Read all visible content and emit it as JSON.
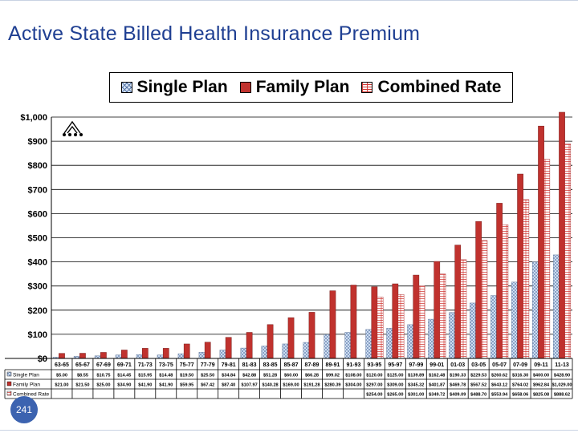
{
  "slide": {
    "title": "Active State Billed Health Insurance Premium",
    "page_number": "241"
  },
  "legend": {
    "items": [
      {
        "label": "Single Plan",
        "series": "single"
      },
      {
        "label": "Family Plan",
        "series": "family"
      },
      {
        "label": "Combined Rate",
        "series": "combined"
      }
    ]
  },
  "colors": {
    "single_fill": "#d8e6f8",
    "single_hatch": "#5a78a8",
    "family_fill": "#c0322e",
    "combined_fill": "#ffffff",
    "combined_hatch": "#d23a36",
    "title": "#1f3f92",
    "badge": "#3c63b0"
  },
  "chart_data": {
    "type": "bar",
    "title": "Active State Billed Health Insurance Premium",
    "xlabel": "",
    "ylabel": "",
    "ylim": [
      0,
      1000
    ],
    "yticks": [
      "$0",
      "$100",
      "$200",
      "$300",
      "$400",
      "$500",
      "$600",
      "$700",
      "$800",
      "$900",
      "$1,000"
    ],
    "grid": true,
    "legend_position": "top",
    "categories": [
      "63-65",
      "65-67",
      "67-69",
      "69-71",
      "71-73",
      "73-75",
      "75-77",
      "77-79",
      "79-81",
      "81-83",
      "83-85",
      "85-87",
      "87-89",
      "89-91",
      "91-93",
      "93-95",
      "95-97",
      "97-99",
      "99-01",
      "01-03",
      "03-05",
      "05-07",
      "07-09",
      "09-11",
      "11-13"
    ],
    "series": [
      {
        "name": "Single Plan",
        "values": [
          5.0,
          8.55,
          10.75,
          14.45,
          15.95,
          14.48,
          19.5,
          25.5,
          34.84,
          42.88,
          51.28,
          60.0,
          66.28,
          99.02,
          108.0,
          120.0,
          125.0,
          139.89,
          162.48,
          190.33,
          229.53,
          260.62,
          316.3,
          400.0,
          428.9
        ],
        "labels": [
          "$5.00",
          "$8.55",
          "$10.75",
          "$14.45",
          "$15.95",
          "$14.48",
          "$19.50",
          "$25.50",
          "$34.84",
          "$42.88",
          "$51.28",
          "$60.00",
          "$66.28",
          "$99.02",
          "$108.00",
          "$120.00",
          "$125.00",
          "$139.89",
          "$162.48",
          "$190.33",
          "$229.53",
          "$260.62",
          "$316.30",
          "$400.00",
          "$428.90"
        ]
      },
      {
        "name": "Family Plan",
        "values": [
          21.0,
          21.5,
          25.0,
          34.9,
          41.9,
          41.9,
          59.95,
          67.42,
          87.4,
          107.97,
          140.28,
          169.0,
          191.28,
          280.39,
          304.0,
          297.0,
          309.0,
          345.32,
          401.87,
          469.78,
          567.52,
          643.12,
          764.02,
          962.84,
          1029.0
        ],
        "labels": [
          "$21.00",
          "$21.50",
          "$25.00",
          "$34.90",
          "$41.90",
          "$41.90",
          "$59.95",
          "$67.42",
          "$87.40",
          "$107.97",
          "$140.28",
          "$169.00",
          "$191.28",
          "$280.39",
          "$304.00",
          "$297.00",
          "$309.00",
          "$345.32",
          "$401.87",
          "$469.78",
          "$567.52",
          "$643.12",
          "$764.02",
          "$962.84",
          "$1,029.00"
        ]
      },
      {
        "name": "Combined Rate",
        "values": [
          null,
          null,
          null,
          null,
          null,
          null,
          null,
          null,
          null,
          null,
          null,
          null,
          null,
          null,
          null,
          254.0,
          265.0,
          301.0,
          349.72,
          409.09,
          488.7,
          553.94,
          658.06,
          825.08,
          888.62
        ],
        "labels": [
          "",
          "",
          "",
          "",
          "",
          "",
          "",
          "",
          "",
          "",
          "",
          "",
          "",
          "",
          "",
          "$254.00",
          "$265.00",
          "$301.00",
          "$349.72",
          "$409.09",
          "$488.70",
          "$553.94",
          "$658.06",
          "$825.08",
          "$888.62"
        ]
      }
    ],
    "table_row_labels": [
      "Single Plan",
      "Family Plan",
      "Combined Rate"
    ]
  }
}
